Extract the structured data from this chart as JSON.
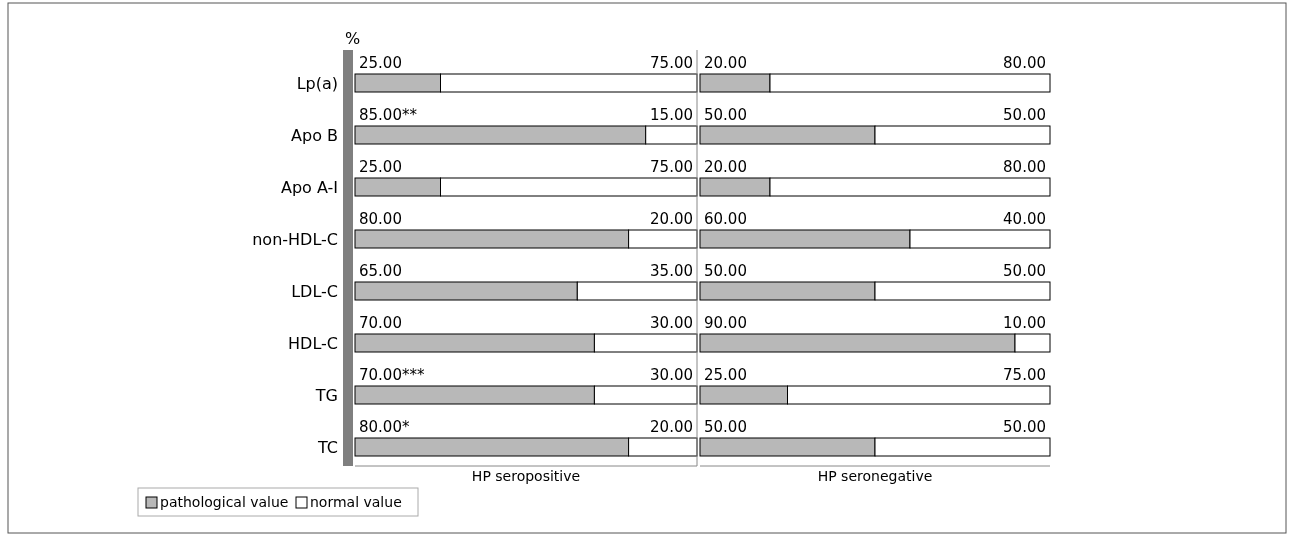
{
  "chart_data": [
    {
      "type": "bar",
      "orientation": "horizontal",
      "stacked": true,
      "ylabel": "%",
      "xlabel": "HP seropositive",
      "categories": [
        "Lp(a)",
        "Apo B",
        "Apo A-I",
        "non-HDL-C",
        "LDL-C",
        "HDL-C",
        "TG",
        "TC"
      ],
      "xlim": [
        0,
        100
      ],
      "legend": "bottom left",
      "series": [
        {
          "name": "pathological value",
          "color": "#b8b8b8",
          "values": [
            25,
            85,
            25,
            80,
            65,
            70,
            70,
            80
          ],
          "value_labels": [
            "25.00",
            "85.00**",
            "25.00",
            "80.00",
            "65.00",
            "70.00",
            "70.00***",
            "80.00*"
          ]
        },
        {
          "name": "normal value",
          "color": "#ffffff",
          "values": [
            75,
            15,
            75,
            20,
            35,
            30,
            30,
            20
          ],
          "value_labels": [
            "75.00",
            "15.00",
            "75.00",
            "20.00",
            "35.00",
            "30.00",
            "30.00",
            "20.00"
          ]
        }
      ]
    },
    {
      "type": "bar",
      "orientation": "horizontal",
      "stacked": true,
      "xlabel": "HP seronegative",
      "categories": [
        null,
        null,
        null,
        null,
        null,
        null,
        null,
        null
      ],
      "xlim": [
        0,
        100
      ],
      "series": [
        {
          "color": "#b8b8b8",
          "values": [
            20,
            50,
            20,
            60,
            50,
            90,
            25,
            50
          ],
          "value_labels": [
            "20.00",
            "50.00",
            "20.00",
            "60.00",
            "50.00",
            "90.00",
            "25.00",
            "50.00"
          ]
        },
        {
          "color": "#ffffff",
          "values": [
            80,
            50,
            80,
            40,
            50,
            10,
            75,
            50
          ],
          "value_labels": [
            "80.00",
            "50.00",
            "80.00",
            "40.00",
            "50.00",
            "10.00",
            "75.00",
            "50.00"
          ]
        }
      ]
    }
  ]
}
